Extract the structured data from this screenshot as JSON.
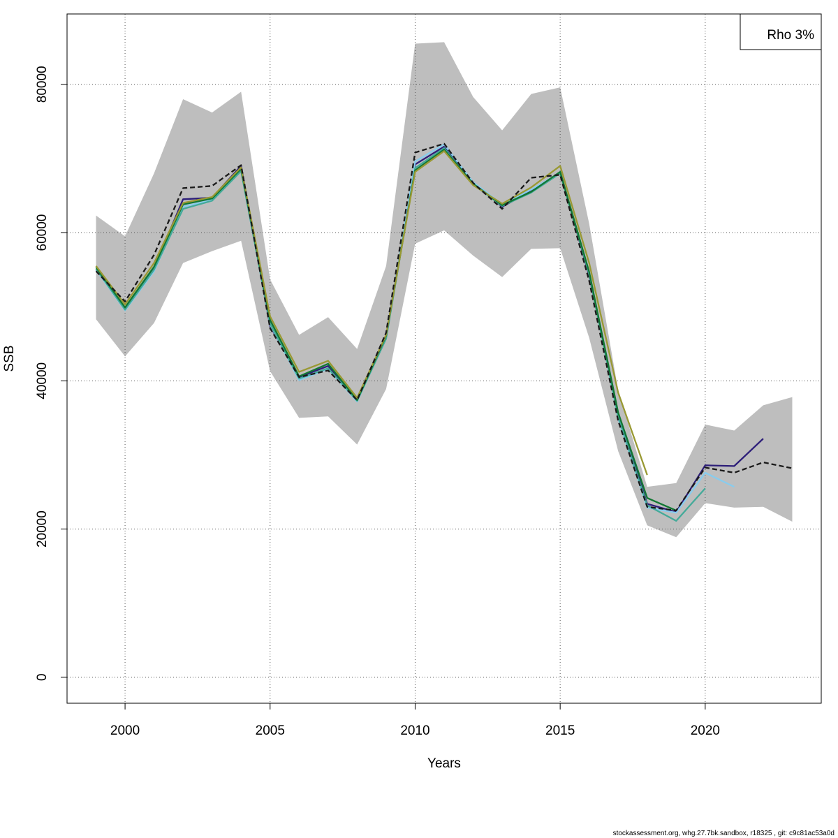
{
  "chart_data": {
    "type": "line",
    "title": "",
    "xlabel": "Years",
    "ylabel": "SSB",
    "xlim": [
      1998,
      2024
    ],
    "ylim": [
      -3500,
      89500
    ],
    "x_ticks": [
      2000,
      2005,
      2010,
      2015,
      2020
    ],
    "y_ticks": [
      0,
      20000,
      40000,
      60000,
      80000
    ],
    "grid": true,
    "legend": {
      "placement": "top-right",
      "text": "Rho 3%"
    },
    "confidence_band": {
      "color": "#bebebe",
      "x": [
        1999,
        2000,
        2001,
        2002,
        2003,
        2004,
        2005,
        2006,
        2007,
        2008,
        2009,
        2010,
        2011,
        2012,
        2013,
        2014,
        2015,
        2016,
        2017,
        2018,
        2019,
        2020,
        2021,
        2022,
        2023
      ],
      "upper": [
        62300,
        59500,
        68000,
        78000,
        76200,
        79000,
        53700,
        46200,
        48600,
        44300,
        55500,
        85500,
        85700,
        78300,
        73800,
        78700,
        79600,
        61200,
        38700,
        25700,
        26200,
        34100,
        33300,
        36700,
        37800
      ],
      "lower": [
        48300,
        43300,
        47800,
        55900,
        57500,
        58900,
        41300,
        35000,
        35200,
        31400,
        38900,
        58500,
        60300,
        56900,
        54000,
        57800,
        57900,
        45800,
        30500,
        20500,
        18900,
        23500,
        22900,
        23000,
        21000
      ]
    },
    "series": [
      {
        "color": "#2d1e79",
        "dashed": false,
        "x": [
          1999,
          2000,
          2001,
          2002,
          2003,
          2004,
          2005,
          2006,
          2007,
          2008,
          2009,
          2010,
          2011,
          2012,
          2013,
          2014,
          2015,
          2016,
          2017,
          2018,
          2019,
          2020,
          2021,
          2022
        ],
        "values": [
          55000,
          49800,
          55200,
          64500,
          64700,
          69000,
          47400,
          40500,
          42000,
          37400,
          46000,
          69200,
          71600,
          66800,
          63500,
          65600,
          68100,
          54200,
          35600,
          23400,
          22300,
          28600,
          28500,
          32200
        ]
      },
      {
        "color": "#88ccee",
        "dashed": false,
        "x": [
          1999,
          2000,
          2001,
          2002,
          2003,
          2004,
          2005,
          2006,
          2007,
          2008,
          2009,
          2010,
          2011,
          2012,
          2013,
          2014,
          2015,
          2016,
          2017,
          2018,
          2019,
          2020,
          2021
        ],
        "values": [
          55000,
          49500,
          54800,
          63500,
          64400,
          68400,
          47600,
          40100,
          41600,
          37200,
          45800,
          69600,
          71900,
          66800,
          63800,
          65800,
          68100,
          54500,
          34900,
          22900,
          22200,
          27600,
          25700
        ]
      },
      {
        "color": "#44aa99",
        "dashed": false,
        "x": [
          1999,
          2000,
          2001,
          2002,
          2003,
          2004,
          2005,
          2006,
          2007,
          2008,
          2009,
          2010,
          2011,
          2012,
          2013,
          2014,
          2015,
          2016,
          2017,
          2018,
          2019,
          2020
        ],
        "values": [
          55100,
          49600,
          55000,
          63200,
          64300,
          68300,
          47700,
          40300,
          41700,
          37300,
          45700,
          68700,
          71400,
          66500,
          63600,
          65400,
          68000,
          54400,
          35100,
          23200,
          21100,
          25500
        ]
      },
      {
        "color": "#117733",
        "dashed": false,
        "x": [
          1999,
          2000,
          2001,
          2002,
          2003,
          2004,
          2005,
          2006,
          2007,
          2008,
          2009,
          2010,
          2011,
          2012,
          2013,
          2014,
          2015,
          2016,
          2017,
          2018,
          2019
        ],
        "values": [
          55300,
          49900,
          55400,
          63800,
          64600,
          68600,
          48200,
          40600,
          42300,
          37400,
          46100,
          68400,
          71200,
          66600,
          63700,
          65500,
          68200,
          54700,
          35700,
          24200,
          22500
        ]
      },
      {
        "color": "#999933",
        "dashed": false,
        "x": [
          1999,
          2000,
          2001,
          2002,
          2003,
          2004,
          2005,
          2006,
          2007,
          2008,
          2009,
          2010,
          2011,
          2012,
          2013,
          2014,
          2015,
          2016,
          2017,
          2018
        ],
        "values": [
          55500,
          50300,
          55900,
          64000,
          64800,
          68800,
          48700,
          41200,
          42700,
          37700,
          46200,
          68200,
          71000,
          66400,
          63900,
          66100,
          69000,
          55900,
          38400,
          27300
        ]
      },
      {
        "color": "#1a1a1a",
        "dashed": true,
        "x": [
          1999,
          2000,
          2001,
          2002,
          2003,
          2004,
          2005,
          2006,
          2007,
          2008,
          2009,
          2010,
          2011,
          2012,
          2013,
          2014,
          2015,
          2016,
          2017,
          2018,
          2019,
          2020,
          2021,
          2022,
          2023
        ],
        "values": [
          54800,
          50700,
          57000,
          66000,
          66300,
          69100,
          47100,
          40500,
          41400,
          37400,
          46500,
          70800,
          72000,
          66700,
          63200,
          67400,
          67800,
          53500,
          34600,
          23000,
          22500,
          28300,
          27600,
          29000,
          28200
        ]
      }
    ]
  },
  "footer": {
    "text": "stockassessment.org, whg.27.7bk.sandbox, r18325 , git: c9c81ac53a0d"
  }
}
